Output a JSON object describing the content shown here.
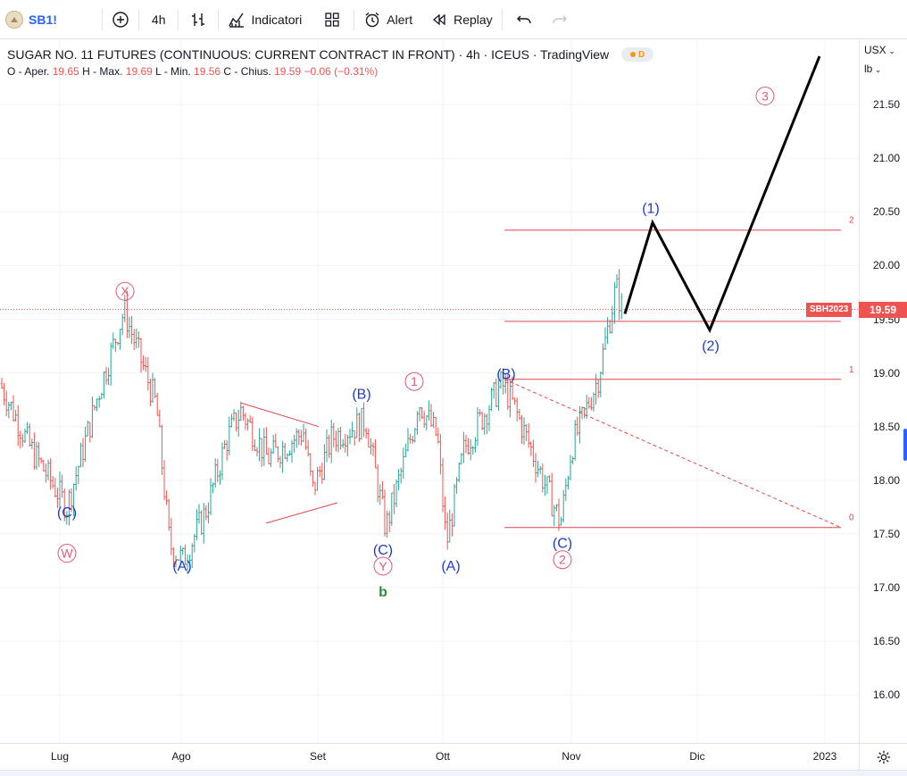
{
  "toolbar": {
    "symbol": "SB1!",
    "interval": "4h",
    "indicators_label": "Indicatori",
    "alert_label": "Alert",
    "replay_label": "Replay"
  },
  "legend": {
    "title": "SUGAR NO. 11 FUTURES (CONTINUOUS: CURRENT CONTRACT IN FRONT) · 4h · ICEUS · TradingView",
    "badge_letter": "D",
    "open_label": "O - Aper.",
    "open": "19.65",
    "high_label": "H - Max.",
    "high": "19.69",
    "low_label": "L - Min.",
    "low": "19.56",
    "close_label": "C - Chius.",
    "close": "19.59",
    "change": "−0.06 (−0.31%)"
  },
  "price_axis": {
    "currency": "USX",
    "unit": "lb",
    "ticks": [
      "21.50",
      "21.00",
      "20.50",
      "20.00",
      "19.50",
      "19.00",
      "18.50",
      "18.00",
      "17.50",
      "17.00",
      "16.50",
      "16.00"
    ],
    "last_price": "19.59",
    "contract_tag": "SBH2023"
  },
  "time_axis": {
    "ticks": [
      "Lug",
      "Ago",
      "Set",
      "Ott",
      "Nov",
      "Dic",
      "2023"
    ]
  },
  "fib_labels": [
    "2",
    "1",
    "0"
  ],
  "wave_labels": [
    {
      "text": "(C)",
      "color": "#1e3cc8"
    },
    {
      "text": "W",
      "color": "#e05a7a"
    },
    {
      "text": "X",
      "color": "#e05a7a"
    },
    {
      "text": "(A)",
      "color": "#1e3cc8"
    },
    {
      "text": "(B)",
      "color": "#1e3cc8"
    },
    {
      "text": "(C)",
      "color": "#1e3cc8"
    },
    {
      "text": "Y",
      "color": "#e05a7a"
    },
    {
      "text": "b",
      "color": "#2e8b3a"
    },
    {
      "text": "1",
      "color": "#e05a7a"
    },
    {
      "text": "(A)",
      "color": "#1e3cc8"
    },
    {
      "text": "(B)",
      "color": "#1e3cc8"
    },
    {
      "text": "(C)",
      "color": "#1e3cc8"
    },
    {
      "text": "2",
      "color": "#e05a7a"
    },
    {
      "text": "(1)",
      "color": "#1e3cc8"
    },
    {
      "text": "(2)",
      "color": "#1e3cc8"
    },
    {
      "text": "3",
      "color": "#e05a7a"
    }
  ],
  "colors": {
    "up": "#26a69a",
    "down": "#ef5350",
    "accent": "#2962ff",
    "fib": "#e0474c",
    "projection": "#000000"
  },
  "chart_data": {
    "type": "candlestick",
    "ohlc_path": [
      [
        "Lug",
        18.9
      ],
      [
        "Lug",
        18.3
      ],
      [
        "Lug",
        17.75
      ],
      [
        "Lug",
        18.8
      ],
      [
        "Lug",
        19.58
      ],
      [
        "Ago",
        18.7
      ],
      [
        "Ago",
        17.4
      ],
      [
        "Ago",
        17.25
      ],
      [
        "Ago",
        17.7
      ],
      [
        "Ago",
        18.4
      ],
      [
        "Ago",
        18.65
      ],
      [
        "Set",
        18.2
      ],
      [
        "Set",
        18.45
      ],
      [
        "Set",
        17.9
      ],
      [
        "Set",
        18.4
      ],
      [
        "Set",
        18.55
      ],
      [
        "Set",
        17.55
      ],
      [
        "Set",
        18.55
      ],
      [
        "Set",
        18.75
      ],
      [
        "Ott",
        18.4
      ],
      [
        "Ott",
        17.4
      ],
      [
        "Ott",
        18.3
      ],
      [
        "Ott",
        18.9
      ],
      [
        "Ott",
        18.7
      ],
      [
        "Nov",
        17.6
      ],
      [
        "Nov",
        18.3
      ],
      [
        "Nov",
        18.95
      ],
      [
        "Nov",
        19.8
      ],
      [
        "Nov",
        19.59
      ]
    ],
    "fib_levels": [
      20.33,
      18.94,
      17.56
    ],
    "projection": [
      19.55,
      20.4,
      19.4,
      21.95
    ]
  }
}
